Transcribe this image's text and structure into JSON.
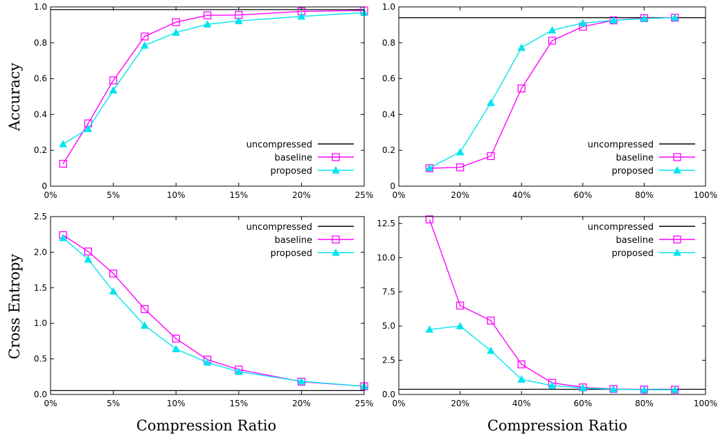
{
  "figure": {
    "row_labels": [
      "Accuracy",
      "Cross Entropy"
    ],
    "column_labels": [
      "Compression Ratio",
      "Compression Ratio"
    ]
  },
  "colors": {
    "uncompressed": "#000000",
    "baseline": "#ff00ff",
    "proposed": "#00e5ee"
  },
  "chart_data": [
    {
      "type": "line",
      "xlabel": "",
      "ylabel": "Accuracy",
      "xlim": [
        0,
        25
      ],
      "ylim": [
        0,
        1.0
      ],
      "xticks": [
        0,
        5,
        10,
        15,
        20,
        25
      ],
      "xtick_labels": [
        "0%",
        "5%",
        "10%",
        "15%",
        "20%",
        "25%"
      ],
      "yticks": [
        0,
        0.2,
        0.4,
        0.6,
        0.8,
        1.0
      ],
      "ytick_labels": [
        "0",
        "0.2",
        "0.4",
        "0.6",
        "0.8",
        "1.0"
      ],
      "legend_position": "bottom-right",
      "reference_line": {
        "name": "uncompressed",
        "y": 0.985
      },
      "series": [
        {
          "name": "baseline",
          "marker": "square",
          "x": [
            1,
            3,
            5,
            7.5,
            10,
            12.5,
            15,
            20,
            25
          ],
          "y": [
            0.125,
            0.35,
            0.59,
            0.835,
            0.915,
            0.953,
            0.955,
            0.975,
            0.98
          ]
        },
        {
          "name": "proposed",
          "marker": "triangle",
          "x": [
            1,
            3,
            5,
            7.5,
            10,
            12.5,
            15,
            20,
            25
          ],
          "y": [
            0.235,
            0.32,
            0.535,
            0.785,
            0.857,
            0.903,
            0.922,
            0.947,
            0.968
          ]
        }
      ]
    },
    {
      "type": "line",
      "xlabel": "",
      "ylabel": "",
      "xlim": [
        0,
        100
      ],
      "ylim": [
        0,
        1.0
      ],
      "xticks": [
        0,
        20,
        40,
        60,
        80,
        100
      ],
      "xtick_labels": [
        "0%",
        "20%",
        "40%",
        "60%",
        "80%",
        "100%"
      ],
      "yticks": [
        0,
        0.2,
        0.4,
        0.6,
        0.8,
        1.0
      ],
      "ytick_labels": [
        "0",
        "0.2",
        "0.4",
        "0.6",
        "0.8",
        "1.0"
      ],
      "legend_position": "bottom-right",
      "reference_line": {
        "name": "uncompressed",
        "y": 0.94
      },
      "series": [
        {
          "name": "baseline",
          "marker": "square",
          "x": [
            10,
            20,
            30,
            40,
            50,
            60,
            70,
            80,
            90
          ],
          "y": [
            0.1,
            0.105,
            0.168,
            0.545,
            0.812,
            0.89,
            0.925,
            0.937,
            0.94
          ]
        },
        {
          "name": "proposed",
          "marker": "triangle",
          "x": [
            10,
            20,
            30,
            40,
            50,
            60,
            70,
            80,
            90
          ],
          "y": [
            0.102,
            0.19,
            0.465,
            0.773,
            0.87,
            0.91,
            0.925,
            0.935,
            0.94
          ]
        }
      ]
    },
    {
      "type": "line",
      "xlabel": "Compression Ratio",
      "ylabel": "Cross Entropy",
      "xlim": [
        0,
        25
      ],
      "ylim": [
        0,
        2.5
      ],
      "xticks": [
        0,
        5,
        10,
        15,
        20,
        25
      ],
      "xtick_labels": [
        "0%",
        "5%",
        "10%",
        "15%",
        "20%",
        "25%"
      ],
      "yticks": [
        0,
        0.5,
        1.0,
        1.5,
        2.0,
        2.5
      ],
      "ytick_labels": [
        "0.0",
        "0.5",
        "1.0",
        "1.5",
        "2.0",
        "2.5"
      ],
      "legend_position": "top-right",
      "reference_line": {
        "name": "uncompressed",
        "y": 0.055
      },
      "series": [
        {
          "name": "baseline",
          "marker": "square",
          "x": [
            1,
            3,
            5,
            7.5,
            10,
            12.5,
            15,
            20,
            25
          ],
          "y": [
            2.24,
            2.01,
            1.7,
            1.2,
            0.785,
            0.49,
            0.35,
            0.18,
            0.115
          ]
        },
        {
          "name": "proposed",
          "marker": "triangle",
          "x": [
            1,
            3,
            5,
            7.5,
            10,
            12.5,
            15,
            20,
            25
          ],
          "y": [
            2.2,
            1.9,
            1.45,
            0.97,
            0.64,
            0.45,
            0.32,
            0.185,
            0.115
          ]
        }
      ]
    },
    {
      "type": "line",
      "xlabel": "Compression Ratio",
      "ylabel": "",
      "xlim": [
        0,
        100
      ],
      "ylim": [
        0,
        13
      ],
      "xticks": [
        0,
        20,
        40,
        60,
        80,
        100
      ],
      "xtick_labels": [
        "0%",
        "20%",
        "40%",
        "60%",
        "80%",
        "100%"
      ],
      "yticks": [
        0,
        2.5,
        5.0,
        7.5,
        10.0,
        12.5
      ],
      "ytick_labels": [
        "0.0",
        "2.5",
        "5.0",
        "7.5",
        "10.0",
        "12.5"
      ],
      "legend_position": "top-right",
      "reference_line": {
        "name": "uncompressed",
        "y": 0.38
      },
      "series": [
        {
          "name": "baseline",
          "marker": "square",
          "x": [
            10,
            20,
            30,
            40,
            50,
            60,
            70,
            80,
            90
          ],
          "y": [
            12.8,
            6.5,
            5.4,
            2.2,
            0.85,
            0.52,
            0.4,
            0.36,
            0.35
          ]
        },
        {
          "name": "proposed",
          "marker": "triangle",
          "x": [
            10,
            20,
            30,
            40,
            50,
            60,
            70,
            80,
            90
          ],
          "y": [
            4.75,
            5.0,
            3.2,
            1.1,
            0.65,
            0.48,
            0.38,
            0.35,
            0.35
          ]
        }
      ]
    }
  ]
}
